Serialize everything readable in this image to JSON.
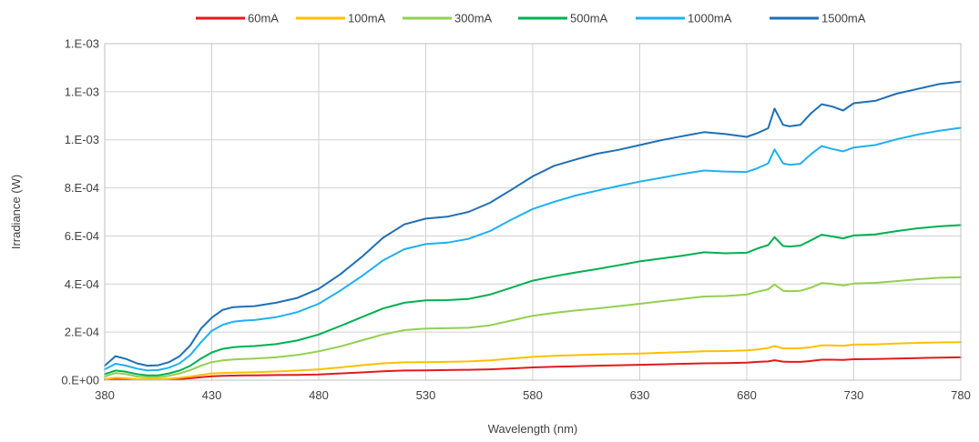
{
  "chart_data": {
    "type": "line",
    "title": "",
    "xlabel": "Wavelength (nm)",
    "ylabel": "Irradiance (W)",
    "xlim": [
      380,
      780
    ],
    "ylim": [
      0,
      0.0014
    ],
    "x_ticks": [
      380,
      430,
      480,
      530,
      580,
      630,
      680,
      730,
      780
    ],
    "y_ticks": [
      {
        "value": 0,
        "label": "0.E+00"
      },
      {
        "value": 0.0002,
        "label": "2.E-04"
      },
      {
        "value": 0.0004,
        "label": "4.E-04"
      },
      {
        "value": 0.0006,
        "label": "6.E-04"
      },
      {
        "value": 0.0008,
        "label": "8.E-04"
      },
      {
        "value": 0.001,
        "label": "1.E-03"
      },
      {
        "value": 0.0012,
        "label": "1.E-03"
      },
      {
        "value": 0.0014,
        "label": "1.E-03"
      }
    ],
    "grid": true,
    "legend_position": "top",
    "x": [
      380,
      385,
      390,
      395,
      400,
      405,
      410,
      415,
      420,
      425,
      430,
      435,
      440,
      445,
      450,
      460,
      470,
      480,
      490,
      500,
      510,
      520,
      530,
      540,
      550,
      560,
      570,
      580,
      590,
      600,
      610,
      620,
      630,
      640,
      650,
      660,
      670,
      680,
      685,
      690,
      693,
      697,
      700,
      705,
      710,
      715,
      720,
      725,
      730,
      740,
      750,
      760,
      770,
      780
    ],
    "series": [
      {
        "name": "60mA",
        "color": "#e31a1c",
        "values": [
          2e-06,
          5e-06,
          4e-06,
          2e-06,
          2e-06,
          2e-06,
          3e-06,
          5e-06,
          8e-06,
          1.2e-05,
          1.6e-05,
          1.8e-05,
          1.9e-05,
          2e-05,
          2e-05,
          2.1e-05,
          2.2e-05,
          2.4e-05,
          2.8e-05,
          3.2e-05,
          3.7e-05,
          4e-05,
          4.1e-05,
          4.2e-05,
          4.3e-05,
          4.5e-05,
          4.9e-05,
          5.3e-05,
          5.6e-05,
          5.8e-05,
          6e-05,
          6.2e-05,
          6.4e-05,
          6.6e-05,
          6.8e-05,
          7e-05,
          7.1e-05,
          7.3e-05,
          7.6e-05,
          7.8e-05,
          8.3e-05,
          7.7e-05,
          7.6e-05,
          7.6e-05,
          8e-05,
          8.5e-05,
          8.5e-05,
          8.4e-05,
          8.7e-05,
          8.8e-05,
          9e-05,
          9.2e-05,
          9.4e-05,
          9.5e-05
        ]
      },
      {
        "name": "100mA",
        "color": "#ffc000",
        "values": [
          5e-06,
          1e-05,
          8e-06,
          5e-06,
          4e-06,
          4e-06,
          6e-06,
          1e-05,
          1.5e-05,
          2.2e-05,
          2.8e-05,
          3e-05,
          3.1e-05,
          3.2e-05,
          3.3e-05,
          3.6e-05,
          4e-05,
          4.5e-05,
          5.3e-05,
          6.2e-05,
          7e-05,
          7.4e-05,
          7.5e-05,
          7.6e-05,
          7.8e-05,
          8.2e-05,
          9e-05,
          9.7e-05,
          0.000101,
          0.000104,
          0.000107,
          0.000109,
          0.000111,
          0.000114,
          0.000117,
          0.00012,
          0.000121,
          0.000124,
          0.000128,
          0.000134,
          0.000142,
          0.000132,
          0.000132,
          0.000133,
          0.000137,
          0.000145,
          0.000145,
          0.000143,
          0.000148,
          0.000149,
          0.000152,
          0.000155,
          0.000157,
          0.000158
        ]
      },
      {
        "name": "300mA",
        "color": "#92d050",
        "values": [
          1.5e-05,
          3e-05,
          2.5e-05,
          1.5e-05,
          1.2e-05,
          1.2e-05,
          1.8e-05,
          2.8e-05,
          4.2e-05,
          6e-05,
          7.5e-05,
          8.2e-05,
          8.6e-05,
          8.8e-05,
          9e-05,
          9.5e-05,
          0.000105,
          0.00012,
          0.00014,
          0.000165,
          0.00019,
          0.000208,
          0.000215,
          0.000216,
          0.000218,
          0.000228,
          0.000248,
          0.000268,
          0.00028,
          0.00029,
          0.000298,
          0.000308,
          0.000318,
          0.000328,
          0.000338,
          0.000348,
          0.00035,
          0.000356,
          0.000368,
          0.000378,
          0.000398,
          0.000372,
          0.00037,
          0.000372,
          0.000385,
          0.000404,
          0.0004,
          0.000394,
          0.000402,
          0.000405,
          0.000412,
          0.00042,
          0.000426,
          0.000428
        ]
      },
      {
        "name": "500mA",
        "color": "#00b050",
        "values": [
          2.5e-05,
          4e-05,
          3.5e-05,
          2.5e-05,
          2e-05,
          2e-05,
          2.8e-05,
          4e-05,
          6e-05,
          9e-05,
          0.000115,
          0.00013,
          0.000137,
          0.00014,
          0.000142,
          0.00015,
          0.000165,
          0.00019,
          0.000225,
          0.000262,
          0.000298,
          0.000322,
          0.000332,
          0.000333,
          0.000338,
          0.000356,
          0.000385,
          0.000414,
          0.000432,
          0.000448,
          0.000462,
          0.000478,
          0.000494,
          0.000506,
          0.000518,
          0.000532,
          0.000528,
          0.00053,
          0.000548,
          0.000562,
          0.000595,
          0.000558,
          0.000556,
          0.00056,
          0.000582,
          0.000605,
          0.000598,
          0.00059,
          0.000602,
          0.000606,
          0.00062,
          0.000632,
          0.00064,
          0.000645
        ]
      },
      {
        "name": "1000mA",
        "color": "#1fb0f0",
        "values": [
          4.5e-05,
          6.8e-05,
          6e-05,
          4.8e-05,
          4e-05,
          4.2e-05,
          5.2e-05,
          7e-05,
          0.000105,
          0.000158,
          0.000205,
          0.00023,
          0.000243,
          0.000248,
          0.00025,
          0.000262,
          0.000283,
          0.000318,
          0.000372,
          0.000432,
          0.000498,
          0.000545,
          0.000566,
          0.000572,
          0.000588,
          0.00062,
          0.000668,
          0.000712,
          0.000742,
          0.000768,
          0.000788,
          0.000808,
          0.000826,
          0.000842,
          0.000858,
          0.000872,
          0.000868,
          0.000866,
          0.000882,
          0.000902,
          0.00096,
          0.000902,
          0.000896,
          0.0009,
          0.00094,
          0.000974,
          0.000962,
          0.000952,
          0.000968,
          0.000978,
          0.001002,
          0.001022,
          0.001038,
          0.00105
        ]
      },
      {
        "name": "1500mA",
        "color": "#1f6fb5",
        "values": [
          6e-05,
          0.0001,
          8.8e-05,
          7e-05,
          6e-05,
          6.2e-05,
          7.5e-05,
          0.0001,
          0.000145,
          0.000215,
          0.00026,
          0.000292,
          0.000304,
          0.000306,
          0.000308,
          0.000322,
          0.000342,
          0.00038,
          0.00044,
          0.000512,
          0.000592,
          0.000648,
          0.000672,
          0.00068,
          0.0007,
          0.000738,
          0.000792,
          0.000848,
          0.000892,
          0.000918,
          0.000942,
          0.000958,
          0.000978,
          0.000998,
          0.001015,
          0.001032,
          0.001024,
          0.001012,
          0.001028,
          0.001048,
          0.00113,
          0.001062,
          0.001056,
          0.001062,
          0.00111,
          0.001148,
          0.001138,
          0.001122,
          0.001152,
          0.001162,
          0.001192,
          0.001212,
          0.001232,
          0.001242
        ]
      }
    ]
  }
}
